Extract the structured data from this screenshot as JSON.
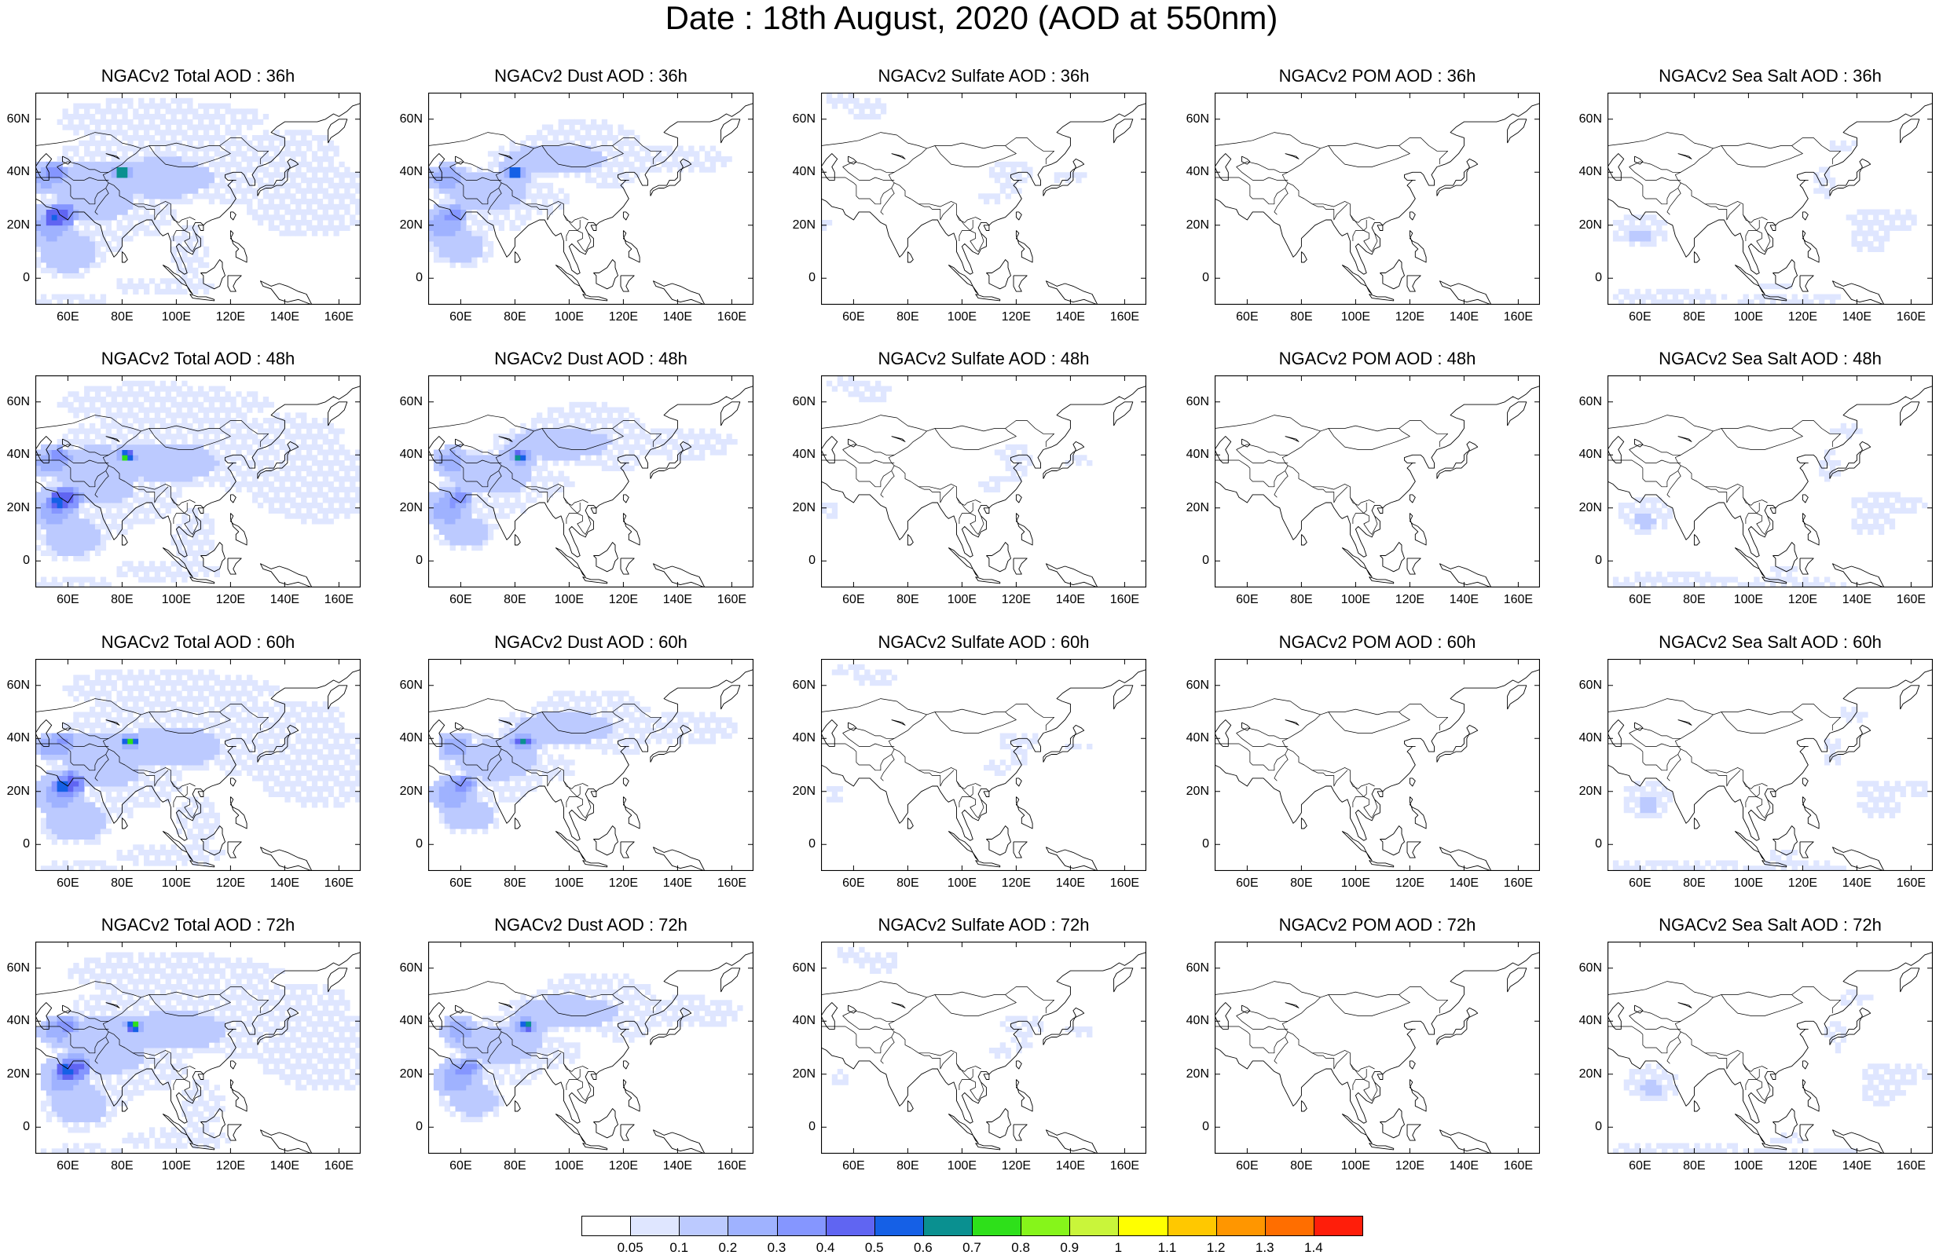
{
  "title": "Date : 18th August, 2020 (AOD at 550nm)",
  "lat_labels": [
    "60N",
    "40N",
    "20N",
    "0"
  ],
  "lon_labels": [
    "60E",
    "80E",
    "100E",
    "120E",
    "140E",
    "160E"
  ],
  "panels": [
    {
      "title": "NGACv2 Total AOD : 36h",
      "species": "total",
      "forecast_hour": 36
    },
    {
      "title": "NGACv2 Dust AOD : 36h",
      "species": "dust",
      "forecast_hour": 36
    },
    {
      "title": "NGACv2 Sulfate AOD : 36h",
      "species": "sulfate",
      "forecast_hour": 36
    },
    {
      "title": "NGACv2 POM AOD : 36h",
      "species": "pom",
      "forecast_hour": 36
    },
    {
      "title": "NGACv2 Sea Salt AOD : 36h",
      "species": "seasalt",
      "forecast_hour": 36
    },
    {
      "title": "NGACv2 Total AOD : 48h",
      "species": "total",
      "forecast_hour": 48
    },
    {
      "title": "NGACv2 Dust AOD : 48h",
      "species": "dust",
      "forecast_hour": 48
    },
    {
      "title": "NGACv2 Sulfate AOD : 48h",
      "species": "sulfate",
      "forecast_hour": 48
    },
    {
      "title": "NGACv2 POM AOD : 48h",
      "species": "pom",
      "forecast_hour": 48
    },
    {
      "title": "NGACv2 Sea Salt AOD : 48h",
      "species": "seasalt",
      "forecast_hour": 48
    },
    {
      "title": "NGACv2 Total AOD : 60h",
      "species": "total",
      "forecast_hour": 60
    },
    {
      "title": "NGACv2 Dust AOD : 60h",
      "species": "dust",
      "forecast_hour": 60
    },
    {
      "title": "NGACv2 Sulfate AOD : 60h",
      "species": "sulfate",
      "forecast_hour": 60
    },
    {
      "title": "NGACv2 POM AOD : 60h",
      "species": "pom",
      "forecast_hour": 60
    },
    {
      "title": "NGACv2 Sea Salt AOD : 60h",
      "species": "seasalt",
      "forecast_hour": 60
    },
    {
      "title": "NGACv2 Total AOD : 72h",
      "species": "total",
      "forecast_hour": 72
    },
    {
      "title": "NGACv2 Dust AOD : 72h",
      "species": "dust",
      "forecast_hour": 72
    },
    {
      "title": "NGACv2 Sulfate AOD : 72h",
      "species": "sulfate",
      "forecast_hour": 72
    },
    {
      "title": "NGACv2 POM AOD : 72h",
      "species": "pom",
      "forecast_hour": 72
    },
    {
      "title": "NGACv2 Sea Salt  AOD : 72h",
      "species": "seasalt",
      "forecast_hour": 72
    }
  ],
  "colorbar": {
    "labels": [
      "0.05",
      "0.1",
      "0.2",
      "0.3",
      "0.4",
      "0.5",
      "0.6",
      "0.7",
      "0.8",
      "0.9",
      "1",
      "1.1",
      "1.2",
      "1.3",
      "1.4"
    ],
    "colors": [
      "#ffffff",
      "#dfe6ff",
      "#bccaff",
      "#9fb2ff",
      "#8596ff",
      "#6065f2",
      "#1560e6",
      "#0a9090",
      "#2ee01a",
      "#86f51a",
      "#c9f53a",
      "#ffff00",
      "#ffc800",
      "#ff9600",
      "#ff6e00",
      "#ff1e0a"
    ]
  }
}
